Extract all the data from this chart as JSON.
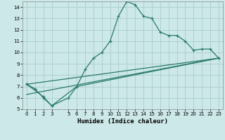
{
  "xlabel": "Humidex (Indice chaleur)",
  "bg_color": "#cce8e8",
  "grid_color": "#aacccc",
  "line_color": "#2a7a6a",
  "line1_x": [
    0,
    1,
    2,
    3,
    5,
    6,
    7,
    8,
    9,
    10,
    11,
    12,
    13,
    14,
    15,
    16,
    17,
    18,
    19,
    20,
    21,
    22,
    23
  ],
  "line1_y": [
    7.2,
    6.8,
    6.0,
    5.3,
    6.0,
    7.0,
    8.5,
    9.5,
    10.0,
    11.0,
    13.2,
    14.5,
    14.2,
    13.2,
    13.0,
    11.8,
    11.5,
    11.5,
    11.0,
    10.2,
    10.3,
    10.3,
    9.5
  ],
  "line2_x": [
    0,
    2,
    3,
    6,
    23
  ],
  "line2_y": [
    7.2,
    6.1,
    5.3,
    7.0,
    9.5
  ],
  "line3_x": [
    0,
    23
  ],
  "line3_y": [
    7.2,
    9.5
  ],
  "line4_x": [
    0,
    23
  ],
  "line4_y": [
    6.3,
    9.5
  ],
  "xlim": [
    -0.5,
    23.5
  ],
  "ylim": [
    5,
    14.5
  ],
  "yticks": [
    5,
    6,
    7,
    8,
    9,
    10,
    11,
    12,
    13,
    14
  ],
  "xticks": [
    0,
    1,
    2,
    3,
    5,
    6,
    7,
    8,
    9,
    10,
    11,
    12,
    13,
    14,
    15,
    16,
    17,
    18,
    19,
    20,
    21,
    22,
    23
  ],
  "xlabel_fontsize": 6.5,
  "tick_fontsize": 5.0
}
